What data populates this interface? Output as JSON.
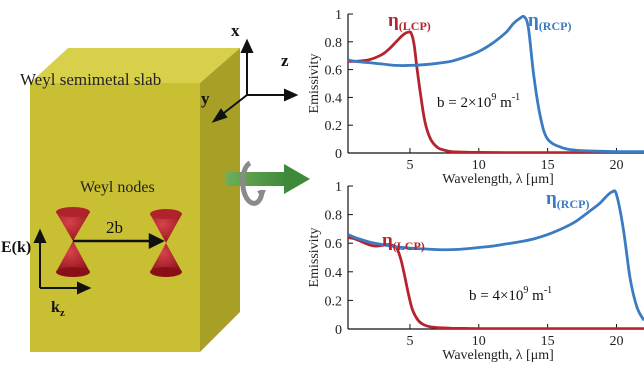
{
  "illustration": {
    "slab_label": "Weyl semimetal slab",
    "nodes_label": "Weyl nodes",
    "separation_label": "2b",
    "energy_axis_label": "E(k)",
    "momentum_axis_label_main": "k",
    "momentum_axis_label_sub": "z",
    "axis_x": "x",
    "axis_y": "y",
    "axis_z": "z",
    "colors": {
      "slab": "#c8c032",
      "cone": "#9c1820",
      "arrow": "#5aa246",
      "swirl": "#8a8a8a"
    }
  },
  "chart_data": [
    {
      "type": "line",
      "xlabel": "Wavelength, λ [μm]",
      "ylabel": "Emissivity",
      "xlim": [
        0.5,
        22
      ],
      "ylim": [
        0,
        1
      ],
      "xticks": [
        5,
        10,
        15,
        20
      ],
      "yticks": [
        0,
        0.2,
        0.4,
        0.6,
        0.8,
        1
      ],
      "ytick_labels": [
        "0",
        "0.2",
        "0.4",
        "0.6",
        "0.8",
        "1"
      ],
      "annotation": {
        "prefix": "b = 2×10",
        "exp": "9",
        "unit": " m",
        "unit_exp": "-1"
      },
      "series": [
        {
          "name": "LCP",
          "label_main": "η",
          "label_sub": "(LCP)",
          "color": "#b5242e",
          "x": [
            0.5,
            1,
            2,
            3,
            3.5,
            4,
            4.5,
            4.9,
            5.1,
            5.3,
            5.5,
            5.8,
            6.1,
            6.5,
            7,
            7.5,
            8,
            9,
            10,
            12,
            15,
            18,
            22
          ],
          "y": [
            0.66,
            0.66,
            0.67,
            0.71,
            0.75,
            0.8,
            0.85,
            0.87,
            0.86,
            0.78,
            0.62,
            0.4,
            0.22,
            0.1,
            0.04,
            0.02,
            0.01,
            0.006,
            0.004,
            0.003,
            0.002,
            0.002,
            0.002
          ]
        },
        {
          "name": "RCP",
          "label_main": "η",
          "label_sub": "(RCP)",
          "color": "#3b7bc2",
          "x": [
            0.5,
            1,
            2,
            3,
            4,
            5,
            6,
            7,
            8,
            9,
            10,
            11,
            12,
            12.5,
            13,
            13.3,
            13.6,
            14,
            14.5,
            15,
            16,
            17,
            18,
            20,
            22
          ],
          "y": [
            0.67,
            0.66,
            0.65,
            0.64,
            0.63,
            0.63,
            0.635,
            0.645,
            0.66,
            0.69,
            0.73,
            0.79,
            0.87,
            0.93,
            0.97,
            0.98,
            0.9,
            0.55,
            0.25,
            0.1,
            0.04,
            0.02,
            0.015,
            0.01,
            0.01
          ]
        }
      ]
    },
    {
      "type": "line",
      "xlabel": "Wavelength, λ [μm]",
      "ylabel": "Emissivity",
      "xlim": [
        0.5,
        22
      ],
      "ylim": [
        0,
        1
      ],
      "xticks": [
        5,
        10,
        15,
        20
      ],
      "yticks": [
        0,
        0.2,
        0.4,
        0.6,
        0.8,
        1
      ],
      "ytick_labels": [
        "0",
        "0.2",
        "0.4",
        "0.6",
        "0.8",
        "1"
      ],
      "annotation": {
        "prefix": "b = 4×10",
        "exp": "9",
        "unit": " m",
        "unit_exp": "-1"
      },
      "series": [
        {
          "name": "LCP",
          "label_main": "η",
          "label_sub": "(LCP)",
          "color": "#b5242e",
          "x": [
            0.5,
            1,
            1.5,
            2,
            2.5,
            3,
            3.5,
            4,
            4.3,
            4.6,
            4.9,
            5.2,
            5.6,
            6,
            6.5,
            7,
            8,
            9,
            10,
            12,
            15,
            18,
            22
          ],
          "y": [
            0.64,
            0.63,
            0.61,
            0.59,
            0.58,
            0.585,
            0.59,
            0.57,
            0.5,
            0.38,
            0.24,
            0.13,
            0.06,
            0.03,
            0.015,
            0.01,
            0.005,
            0.004,
            0.003,
            0.002,
            0.002,
            0.002,
            0.002
          ]
        },
        {
          "name": "RCP",
          "label_main": "η",
          "label_sub": "(RCP)",
          "color": "#3b7bc2",
          "x": [
            0.5,
            1,
            2,
            3,
            4,
            5,
            6,
            7,
            8,
            9,
            10,
            11,
            12,
            13,
            14,
            15,
            16,
            17,
            18,
            18.8,
            19.3,
            19.7,
            20,
            20.5,
            21,
            21.5,
            22
          ],
          "y": [
            0.66,
            0.64,
            0.61,
            0.59,
            0.575,
            0.565,
            0.56,
            0.555,
            0.555,
            0.56,
            0.57,
            0.58,
            0.595,
            0.61,
            0.63,
            0.66,
            0.7,
            0.75,
            0.82,
            0.88,
            0.93,
            0.96,
            0.94,
            0.7,
            0.35,
            0.15,
            0.06
          ]
        }
      ]
    }
  ]
}
